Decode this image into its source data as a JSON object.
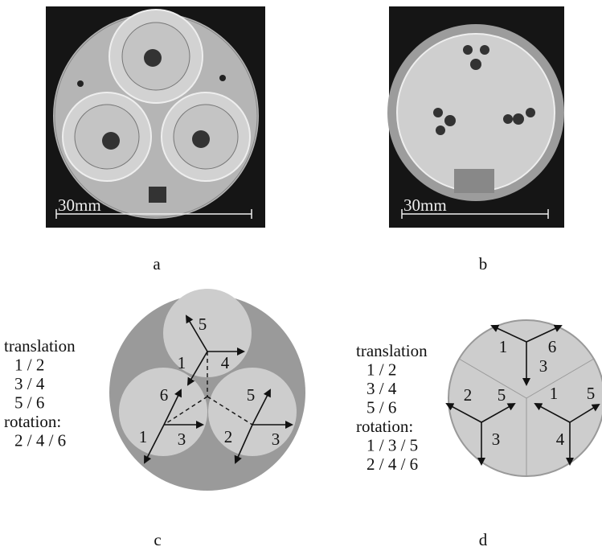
{
  "panels": [
    {
      "label": "a",
      "scale_label": "30mm"
    },
    {
      "label": "b",
      "scale_label": "30mm"
    },
    {
      "label": "c",
      "legend": [
        "translation",
        "1 / 2",
        "3 / 4",
        "5 / 6",
        "rotation:",
        "2 / 4 / 6"
      ],
      "arrow_labels": [
        "5",
        "1",
        "4",
        "6",
        "1",
        "3",
        "5",
        "2",
        "3"
      ]
    },
    {
      "label": "d",
      "legend": [
        "translation",
        "1 / 2",
        "3 / 4",
        "5 / 6",
        "rotation:",
        "1 / 3 / 5",
        "2 / 4 / 6"
      ],
      "arrow_labels": [
        "1",
        "6",
        "3",
        "2",
        "5",
        "3",
        "1",
        "5",
        "4"
      ]
    }
  ]
}
